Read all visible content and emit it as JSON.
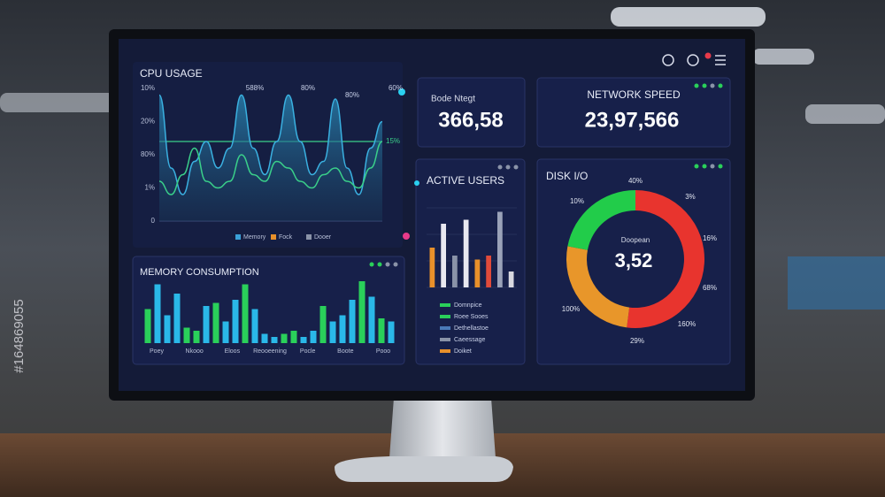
{
  "watermark_id": "#164869055",
  "cpu_usage": {
    "title": "CPU USAGE",
    "y_labels": [
      "10%",
      "20%",
      "80%",
      "1%",
      "0"
    ],
    "peak_labels": [
      "588%",
      "80%",
      "80%",
      "60%"
    ],
    "side_label": "15%",
    "legend": [
      {
        "name": "Memory",
        "color": "#3aa0d8"
      },
      {
        "name": "Fock",
        "color": "#e8902a"
      },
      {
        "name": "Dooer",
        "color": "#8a93a8"
      }
    ],
    "ylim": [
      0,
      100
    ],
    "series": [
      {
        "color": "#3ab0e0",
        "values": [
          95,
          40,
          20,
          45,
          60,
          40,
          55,
          95,
          55,
          35,
          60,
          95,
          60,
          35,
          45,
          92,
          40,
          20,
          55,
          75
        ]
      },
      {
        "color": "#3ad08a",
        "values": [
          30,
          20,
          35,
          55,
          30,
          25,
          30,
          50,
          35,
          30,
          45,
          40,
          30,
          25,
          35,
          40,
          30,
          25,
          40,
          60
        ]
      }
    ]
  },
  "stat_1": {
    "label": "Bode Ntegt",
    "value": "366,58"
  },
  "network_speed": {
    "label": "NETWORK SPEED",
    "value": "23,97,566"
  },
  "active_users": {
    "title": "ACTIVE USERS",
    "ylim": [
      0,
      100
    ],
    "values": [
      50,
      80,
      40,
      85,
      35,
      40,
      95,
      20
    ],
    "colors": [
      "#e8902a",
      "#e8e8f0",
      "#8a93a8",
      "#e8e8f0",
      "#e8902a",
      "#e04a3a",
      "#9aa2b8",
      "#d8d8e0"
    ],
    "legend": [
      {
        "name": "Domnpice",
        "color": "#2ad05a"
      },
      {
        "name": "Roee Sooes",
        "color": "#2ad05a"
      },
      {
        "name": "Dethellastoe",
        "color": "#4a7ab8"
      },
      {
        "name": "Caeessage",
        "color": "#8a93a8"
      },
      {
        "name": "Doiket",
        "color": "#e8902a"
      }
    ]
  },
  "memory_consumption": {
    "title": "MEMORY CONSUMPTION",
    "ylim": [
      0,
      100
    ],
    "values": [
      55,
      95,
      45,
      80,
      25,
      20,
      60,
      65,
      35,
      70,
      95,
      55,
      15,
      10,
      15,
      20,
      10,
      20,
      60,
      35,
      45,
      70,
      100,
      75,
      40,
      35
    ],
    "colors": [
      "#2ad05a",
      "#2ab8e8",
      "#2ab8e8",
      "#2ab8e8",
      "#2ad05a",
      "#2ad05a",
      "#2ab8e8",
      "#2ad05a",
      "#2ab8e8",
      "#2ab8e8",
      "#2ad05a",
      "#2ab8e8",
      "#2ab8e8",
      "#2ab8e8",
      "#2ad05a",
      "#2ad05a",
      "#2ab8e8",
      "#2ab8e8",
      "#2ad05a",
      "#2ab8e8",
      "#2ab8e8",
      "#2ab8e8",
      "#2ad05a",
      "#2ab8e8",
      "#2ad05a",
      "#2ab8e8"
    ],
    "labels": [
      "Poey",
      "Nkooo",
      "Eloos",
      "Reooeening",
      "Pocle",
      "Boote",
      "Pooo"
    ]
  },
  "disk_io": {
    "title": "DISK I/O",
    "center_label": "Doopean",
    "center_value": "3,52",
    "segments": [
      {
        "value": 52,
        "color": "#e8342e"
      },
      {
        "value": 26,
        "color": "#e8962a"
      },
      {
        "value": 22,
        "color": "#22cc4a"
      }
    ],
    "ring_labels": [
      "40%",
      "3%",
      "16%",
      "68%",
      "160%",
      "29%",
      "100%",
      "10%"
    ]
  }
}
